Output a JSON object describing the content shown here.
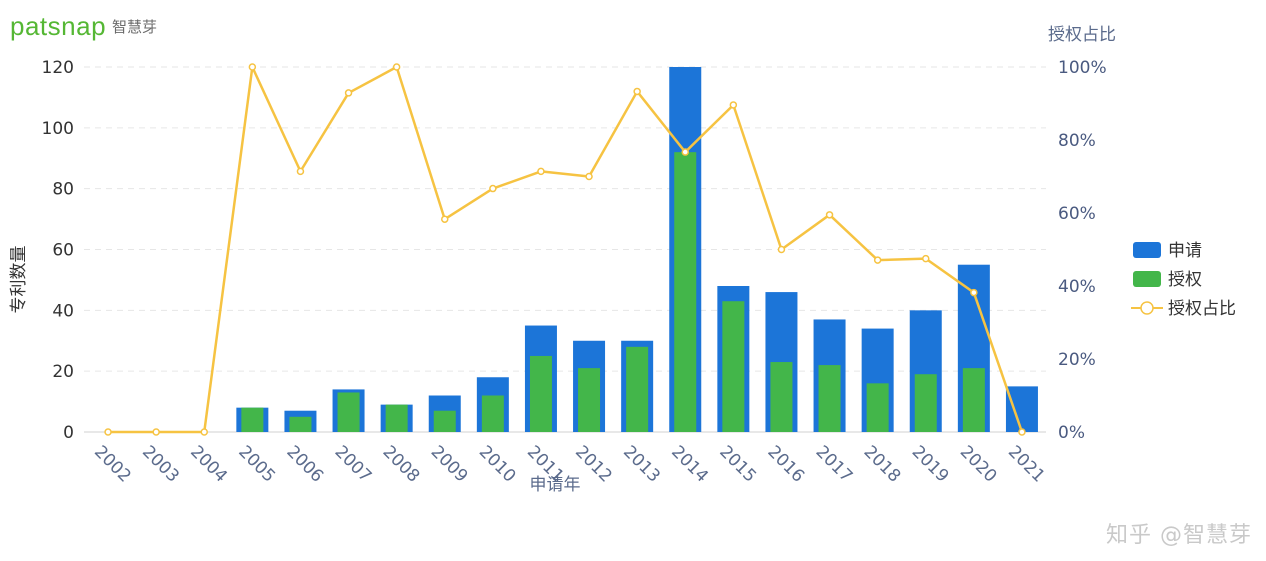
{
  "logo": {
    "brand": "patsnap",
    "sub": "智慧芽"
  },
  "watermark": "知乎 @智慧芽",
  "chart_data": {
    "type": "bar",
    "categories": [
      "2002",
      "2003",
      "2004",
      "2005",
      "2006",
      "2007",
      "2008",
      "2009",
      "2010",
      "2011",
      "2012",
      "2013",
      "2014",
      "2015",
      "2016",
      "2017",
      "2018",
      "2019",
      "2020",
      "2021"
    ],
    "series": [
      {
        "name": "申请",
        "type": "bar",
        "axis": "left",
        "color": "#1c75d8",
        "values": [
          0,
          0,
          0,
          8,
          7,
          14,
          9,
          12,
          18,
          35,
          30,
          30,
          120,
          48,
          46,
          37,
          34,
          40,
          55,
          15
        ]
      },
      {
        "name": "授权",
        "type": "bar",
        "axis": "left",
        "color": "#43b64a",
        "values": [
          0,
          0,
          0,
          8,
          5,
          13,
          9,
          7,
          12,
          25,
          21,
          28,
          92,
          43,
          23,
          22,
          16,
          19,
          21,
          0
        ]
      },
      {
        "name": "授权占比",
        "type": "line",
        "axis": "right",
        "color": "#f6c342",
        "values": [
          0,
          0,
          0,
          100,
          71.4,
          92.9,
          100,
          58.3,
          66.7,
          71.4,
          70,
          93.3,
          76.7,
          89.6,
          50,
          59.5,
          47.1,
          47.5,
          38.2,
          0
        ]
      }
    ],
    "xlabel": "申请年",
    "ylabel": "专利数量",
    "y2label": "授权占比",
    "ylim": [
      0,
      120
    ],
    "yticks": [
      "0",
      "20",
      "40",
      "60",
      "80",
      "100",
      "120"
    ],
    "y2lim": [
      0,
      100
    ],
    "y2ticks": [
      "0%",
      "20%",
      "40%",
      "60%",
      "80%",
      "100%"
    ],
    "grid": true,
    "legend_position": "right"
  }
}
